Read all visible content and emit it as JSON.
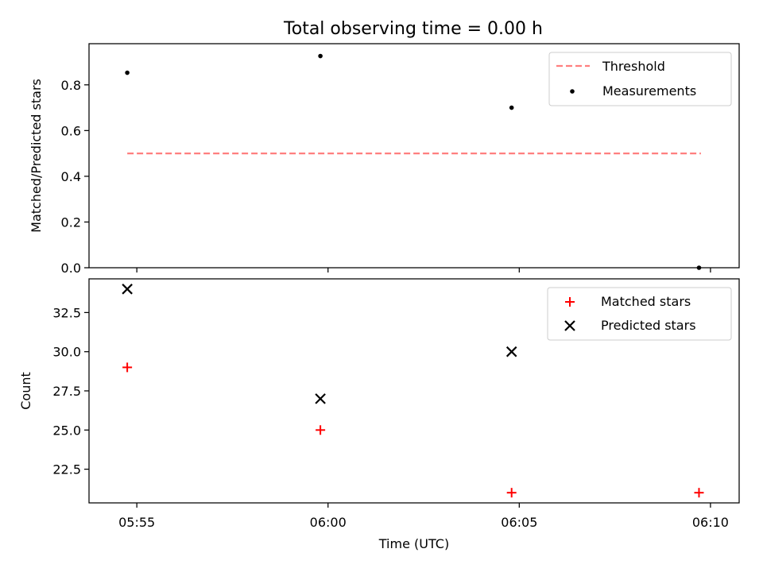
{
  "figure": {
    "title": "Total observing time = 0.00 h",
    "xlabel": "Time (UTC)"
  },
  "colors": {
    "threshold": "#ff7f7f",
    "measurements": "#000000",
    "matched": "#ff0000",
    "predicted": "#000000"
  },
  "chart_data": [
    {
      "type": "scatter",
      "panel": "top",
      "title": "Total observing time = 0.00 h",
      "xlabel": "",
      "ylabel": "Matched/Predicted stars",
      "x_ticks": [
        "05:55",
        "06:00",
        "06:05",
        "06:10"
      ],
      "x_tick_values": [
        355,
        360,
        365,
        370
      ],
      "xlim": [
        353.75,
        370.75
      ],
      "ylim": [
        0.0,
        0.98
      ],
      "y_ticks": [
        0.0,
        0.2,
        0.4,
        0.6,
        0.8
      ],
      "y_tick_labels": [
        "0.0",
        "0.2",
        "0.4",
        "0.6",
        "0.8"
      ],
      "legend_position": "top-right",
      "series": [
        {
          "name": "Threshold",
          "kind": "dashed-line",
          "x": [
            354.75,
            369.75
          ],
          "y": [
            0.5,
            0.5
          ]
        },
        {
          "name": "Measurements",
          "kind": "dot",
          "x": [
            354.75,
            359.8,
            364.8,
            369.7
          ],
          "y": [
            0.853,
            0.926,
            0.7,
            0.0
          ]
        }
      ]
    },
    {
      "type": "scatter",
      "panel": "bottom",
      "xlabel": "Time (UTC)",
      "ylabel": "Count",
      "x_ticks": [
        "05:55",
        "06:00",
        "06:05",
        "06:10"
      ],
      "x_tick_values": [
        355,
        360,
        365,
        370
      ],
      "xlim": [
        353.75,
        370.75
      ],
      "ylim": [
        20.35,
        34.65
      ],
      "y_ticks": [
        22.5,
        25.0,
        27.5,
        30.0,
        32.5
      ],
      "y_tick_labels": [
        "22.5",
        "25.0",
        "27.5",
        "30.0",
        "32.5"
      ],
      "legend_position": "top-right",
      "series": [
        {
          "name": "Matched stars",
          "kind": "plus",
          "x": [
            354.75,
            359.8,
            364.8,
            369.7
          ],
          "y": [
            29,
            25,
            21,
            21
          ]
        },
        {
          "name": "Predicted stars",
          "kind": "cross",
          "x": [
            354.75,
            359.8,
            364.8
          ],
          "y": [
            34,
            27,
            30
          ]
        }
      ]
    }
  ]
}
